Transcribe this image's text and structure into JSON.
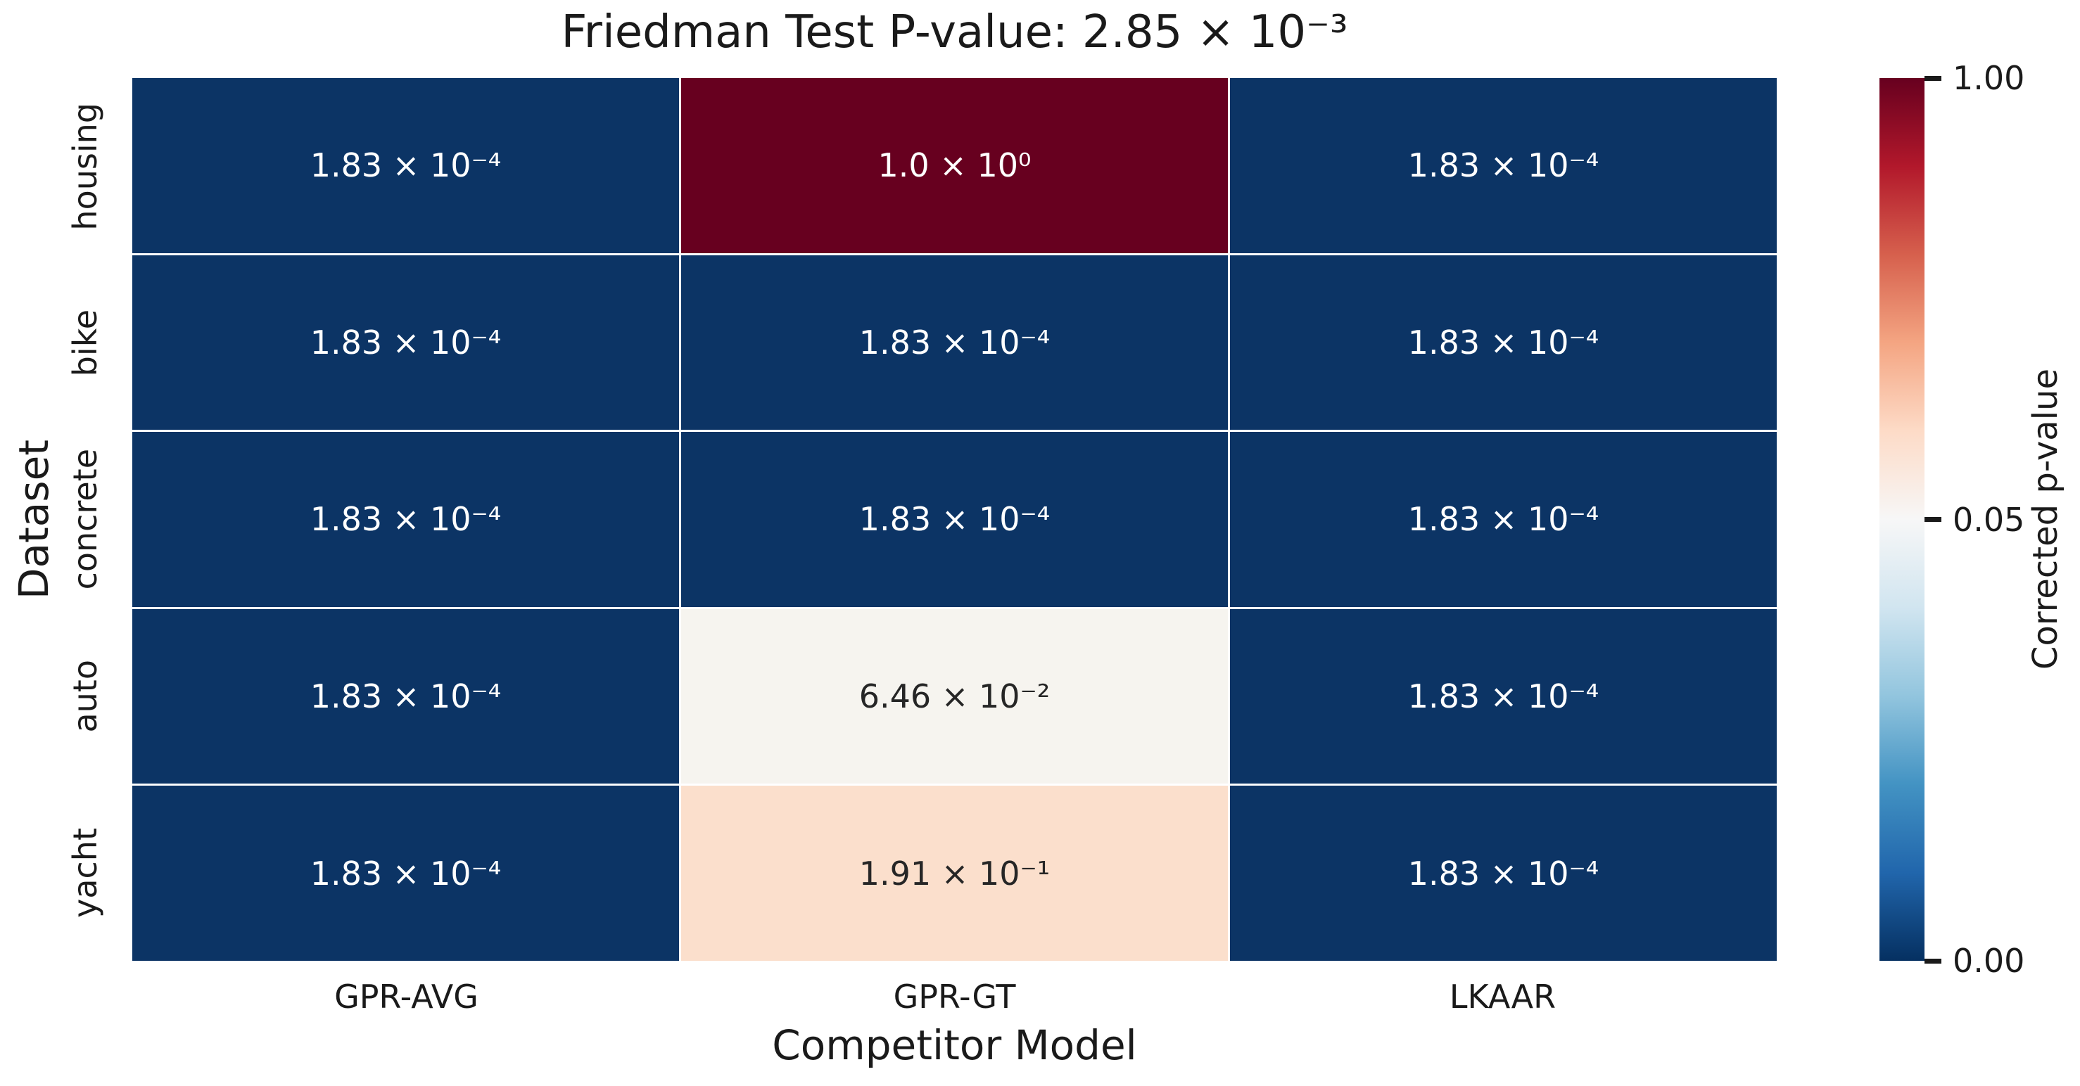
{
  "chart_data": {
    "type": "heatmap",
    "title": "Friedman Test P-value: 2.85 × 10⁻³",
    "xlabel": "Competitor Model",
    "ylabel": "Dataset",
    "columns": [
      "GPR-AVG",
      "GPR-GT",
      "LKAAR"
    ],
    "rows": [
      "housing",
      "bike",
      "concrete",
      "auto",
      "yacht"
    ],
    "values": [
      [
        0.000183,
        1.0,
        0.000183
      ],
      [
        0.000183,
        0.000183,
        0.000183
      ],
      [
        0.000183,
        0.000183,
        0.000183
      ],
      [
        0.000183,
        0.0646,
        0.000183
      ],
      [
        0.000183,
        0.191,
        0.000183
      ]
    ],
    "cells": [
      [
        {
          "label": "1.83 × 10⁻⁴",
          "bg": "#0c3465",
          "fg": "#ffffff"
        },
        {
          "label": "1.0 × 10⁰",
          "bg": "#67001f",
          "fg": "#ffffff"
        },
        {
          "label": "1.83 × 10⁻⁴",
          "bg": "#0c3465",
          "fg": "#ffffff"
        }
      ],
      [
        {
          "label": "1.83 × 10⁻⁴",
          "bg": "#0c3465",
          "fg": "#ffffff"
        },
        {
          "label": "1.83 × 10⁻⁴",
          "bg": "#0c3465",
          "fg": "#ffffff"
        },
        {
          "label": "1.83 × 10⁻⁴",
          "bg": "#0c3465",
          "fg": "#ffffff"
        }
      ],
      [
        {
          "label": "1.83 × 10⁻⁴",
          "bg": "#0c3465",
          "fg": "#ffffff"
        },
        {
          "label": "1.83 × 10⁻⁴",
          "bg": "#0c3465",
          "fg": "#ffffff"
        },
        {
          "label": "1.83 × 10⁻⁴",
          "bg": "#0c3465",
          "fg": "#ffffff"
        }
      ],
      [
        {
          "label": "1.83 × 10⁻⁴",
          "bg": "#0c3465",
          "fg": "#ffffff"
        },
        {
          "label": "6.46 × 10⁻²",
          "bg": "#f6f4ef",
          "fg": "#262626"
        },
        {
          "label": "1.83 × 10⁻⁴",
          "bg": "#0c3465",
          "fg": "#ffffff"
        }
      ],
      [
        {
          "label": "1.83 × 10⁻⁴",
          "bg": "#0c3465",
          "fg": "#ffffff"
        },
        {
          "label": "1.91 × 10⁻¹",
          "bg": "#fbdfcc",
          "fg": "#262626"
        },
        {
          "label": "1.83 × 10⁻⁴",
          "bg": "#0c3465",
          "fg": "#ffffff"
        }
      ]
    ],
    "colorbar": {
      "label": "Corrected p-value",
      "vmin": 0.0,
      "vcenter": 0.05,
      "vmax": 1.0,
      "ticks": [
        {
          "label": "1.00",
          "pos": 0.0
        },
        {
          "label": "0.05",
          "pos": 0.5
        },
        {
          "label": "0.00",
          "pos": 1.0
        }
      ],
      "gradient": [
        "#67001f",
        "#b2182b",
        "#d6604d",
        "#f4a582",
        "#fddbc7",
        "#f7f7f7",
        "#d1e5f0",
        "#92c5de",
        "#4393c3",
        "#2166ac",
        "#053061"
      ]
    },
    "layout": {
      "grid_on": false,
      "gridline_color": "#ffffff",
      "background": "#ffffff",
      "colormap": "RdBu_r"
    }
  }
}
